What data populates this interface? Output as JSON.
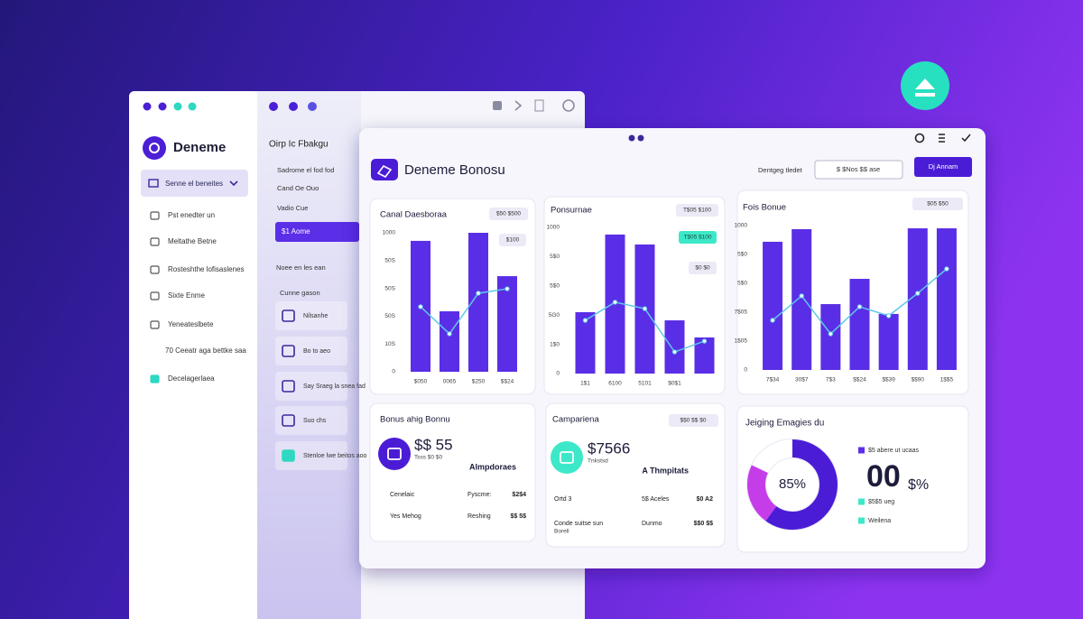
{
  "back_window": {
    "logo": "Deneme",
    "dropdown": "Senne el beneites",
    "menu": [
      "Pst enedter un",
      "Meltathe Betne",
      "Rosteshthe lofisaslenes",
      "Sixte Enme",
      "Yeneateslbete",
      "70 Ceeatr aga bettke saa",
      "Decelagerlaea"
    ],
    "subnav_title": "Oirp Ic Fbakgu",
    "subnav": [
      "Sadrome el fod fod",
      "Cand Oe Ouo",
      "Vadio Cue"
    ],
    "subnav_active": "$1 Aome",
    "subnav_section": "Noee en les ean",
    "subnav_group": "Cunne gason",
    "subnav_items": [
      "Nilsanhe",
      "Bo to aeo",
      "Say Sraeg la snea fad",
      "Suo chs",
      "Stenloe lwe beitos aoo"
    ]
  },
  "main_window": {
    "title": "Deneme Bonosu",
    "header_label": "Dentgeg tledet",
    "search": "$ $Nos  $$ ase",
    "button": "Dj Annam"
  },
  "charts": [
    {
      "title": "Canal Daesboraa",
      "badges": [
        "$50 $500",
        "$100"
      ],
      "ylim": [
        0,
        1000
      ],
      "yticks": [
        1000,
        {
          "value": 800,
          "label": "50S"
        },
        {
          "value": 600,
          "label": "50S"
        },
        {
          "value": 400,
          "label": "50S"
        },
        {
          "value": 200,
          "label": "10S"
        },
        0
      ],
      "categories": [
        "$050",
        "0065",
        "$250",
        "$$24"
      ],
      "values": [
        942,
        435,
        1000,
        688
      ],
      "line": [
        468,
        273,
        565,
        597
      ],
      "color": "#5a2ee6",
      "line_color": "#5fc8e8"
    },
    {
      "title": "Ponsurnae",
      "badges": [
        "T$05 $100",
        "T$05 $100",
        "$0 $0"
      ],
      "ylim": [
        0,
        1000
      ],
      "yticks": [
        1000,
        {
          "value": 800,
          "label": "5$0"
        },
        {
          "value": 600,
          "label": "5$0"
        },
        {
          "value": 400,
          "label": "5G0"
        },
        {
          "value": 200,
          "label": "1$0"
        },
        0
      ],
      "categories": [
        "1$1",
        "6100",
        "5101",
        "$0$1",
        null
      ],
      "values": [
        420,
        951,
        883,
        364,
        247
      ],
      "line": [
        364,
        488,
        444,
        148,
        222
      ],
      "color": "#5a2ee6",
      "line_color": "#5fc8e8"
    },
    {
      "title": "Fois Bonue",
      "badges": [
        "$05 $50"
      ],
      "ylim": [
        0,
        1000
      ],
      "yticks": [
        1000,
        {
          "value": 800,
          "label": "5$0"
        },
        {
          "value": 600,
          "label": "5$0"
        },
        {
          "value": 400,
          "label": "7$05"
        },
        {
          "value": 200,
          "label": "1$05"
        },
        0
      ],
      "categories": [
        "7$34",
        "30$7",
        "7$3",
        "$$24",
        "$$39",
        "$$90",
        "1$$5"
      ],
      "values": [
        888,
        975,
        456,
        631,
        388,
        981,
        981
      ],
      "line": [
        344,
        513,
        250,
        438,
        375,
        531,
        700
      ],
      "color": "#5a2ee6",
      "line_color": "#5fc8e8"
    }
  ],
  "cards": [
    {
      "title": "Bonus ahig Bonnu",
      "amount": "$$ 55",
      "amount_note": "Tsss $0 $0",
      "heading": "Almpdoraes",
      "rows": [
        [
          "Cenelaic",
          "Fyscme:",
          "$2$4"
        ],
        [
          "Yes Mehog",
          "Reshing",
          "$$ 5$"
        ]
      ]
    },
    {
      "title": "Campariena",
      "badge": "$$0 $$ $0",
      "amount": "$7566",
      "amount_note": "Tnkstsd",
      "heading": "A Thmpitats",
      "rows": [
        [
          "Ortd 3",
          "5$ Aceles",
          "$0 A2"
        ],
        [
          "Conde suitse sun",
          "Dunmo",
          "$$0 $$"
        ]
      ],
      "footnote": "Borell"
    }
  ],
  "donut": {
    "title": "Jeiging Emagies du",
    "center_label": "85%",
    "values": [
      60,
      22,
      18
    ],
    "colors": [
      "#4b1fd6",
      "#c53ee8",
      "#ffffff"
    ],
    "legend": [
      "$5 abere ut ucaas",
      "$5$5 ueg",
      "Weilena"
    ],
    "legend_colors": [
      "#5b2ee8",
      "#3ee8c8",
      "#3ee8c8"
    ],
    "big_value": "00",
    "big_suffix": "$%"
  }
}
